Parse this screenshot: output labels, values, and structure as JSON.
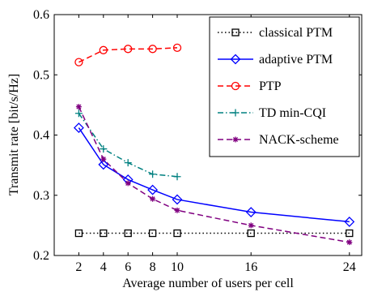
{
  "chart_data": {
    "type": "line",
    "xlabel": "Average number of users per cell",
    "ylabel": "Transmit rate [bit/s/Hz]",
    "xlim": [
      0,
      25
    ],
    "ylim": [
      0.2,
      0.6
    ],
    "xticks": [
      2,
      4,
      6,
      8,
      10,
      16,
      24
    ],
    "yticks": [
      0.2,
      0.3,
      0.4,
      0.5,
      0.6
    ],
    "ytick_labels": [
      "0.2",
      "0.3",
      "0.4",
      "0.5",
      "0.6"
    ],
    "grid": false,
    "legend_position": "top-right",
    "series": [
      {
        "name": "classical PTM",
        "x": [
          2,
          4,
          6,
          8,
          10,
          16,
          24
        ],
        "y": [
          0.237,
          0.237,
          0.237,
          0.237,
          0.237,
          0.237,
          0.237
        ],
        "color": "#000000",
        "dash": "1.5,3",
        "marker": "square"
      },
      {
        "name": "adaptive PTM",
        "x": [
          2,
          4,
          6,
          8,
          10,
          16,
          24
        ],
        "y": [
          0.412,
          0.351,
          0.326,
          0.309,
          0.293,
          0.272,
          0.256
        ],
        "color": "#0000ff",
        "dash": "",
        "marker": "diamond"
      },
      {
        "name": "PTP",
        "x": [
          2,
          4,
          6,
          8,
          10
        ],
        "y": [
          0.521,
          0.541,
          0.543,
          0.543,
          0.545
        ],
        "color": "#ff0000",
        "dash": "7,4",
        "marker": "circle"
      },
      {
        "name": "TD min-CQI",
        "x": [
          2,
          4,
          6,
          8,
          10
        ],
        "y": [
          0.436,
          0.377,
          0.354,
          0.335,
          0.331
        ],
        "color": "#008080",
        "dash": "7,3,1.5,3",
        "marker": "plus"
      },
      {
        "name": "NACK-scheme",
        "x": [
          2,
          4,
          6,
          8,
          10,
          16,
          24
        ],
        "y": [
          0.447,
          0.36,
          0.32,
          0.294,
          0.275,
          0.25,
          0.222
        ],
        "color": "#800080",
        "dash": "7,4",
        "marker": "star"
      }
    ]
  }
}
